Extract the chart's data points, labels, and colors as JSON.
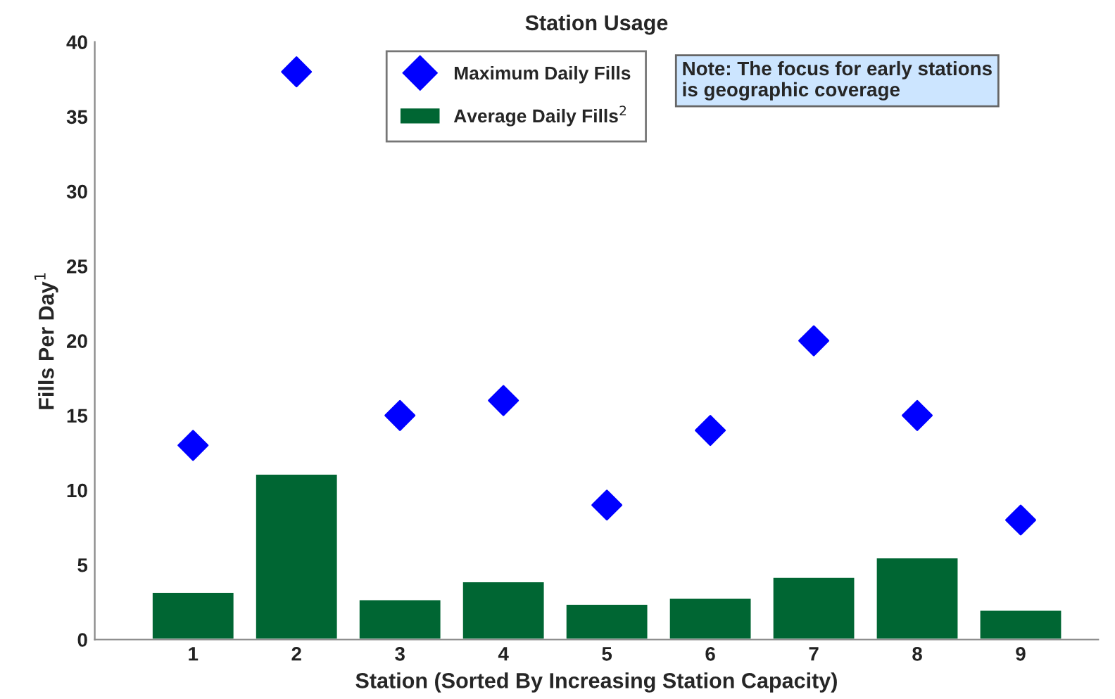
{
  "chart_data": {
    "type": "bar",
    "title": "Station Usage",
    "xlabel": "Station (Sorted By Increasing Station Capacity)",
    "ylabel": "Fills Per Day$^{1}$",
    "categories": [
      "1",
      "2",
      "3",
      "4",
      "5",
      "6",
      "7",
      "8",
      "9"
    ],
    "series": [
      {
        "name": "Maximum Daily Fills",
        "type": "scatter",
        "marker": "diamond",
        "color": "#0000ff",
        "values": [
          13,
          38,
          15,
          16,
          9,
          14,
          20,
          15,
          8
        ]
      },
      {
        "name": "Average Daily Fills$^{2}$",
        "color": "#006633",
        "values": [
          3.2,
          11.1,
          2.7,
          3.9,
          2.4,
          2.8,
          4.2,
          5.5,
          2.0
        ]
      }
    ],
    "ylim": [
      0,
      40
    ],
    "yticks": [
      0,
      5,
      10,
      15,
      20,
      25,
      30,
      35,
      40
    ],
    "grid": false,
    "legend": "top",
    "annotations": [
      "Note: The focus for early stations\nis geographic coverage"
    ]
  }
}
